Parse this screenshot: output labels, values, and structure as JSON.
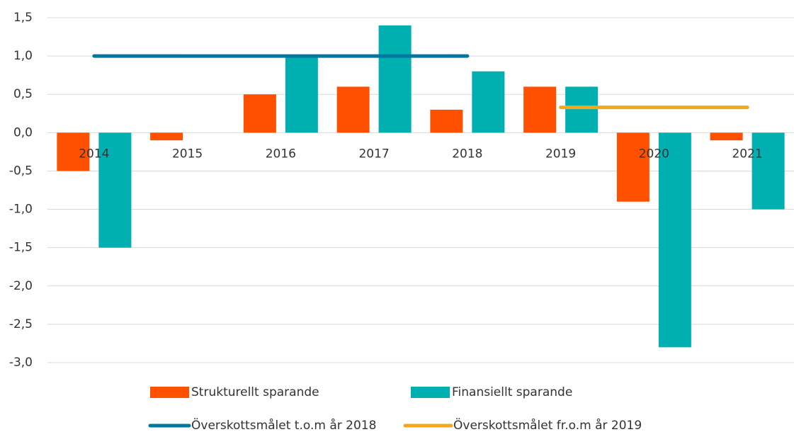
{
  "chart_data": {
    "type": "bar",
    "categories": [
      "2014",
      "2015",
      "2016",
      "2017",
      "2018",
      "2019",
      "2020",
      "2021"
    ],
    "series": [
      {
        "name": "Strukturellt sparande",
        "type": "bar",
        "color": "#ff5000",
        "values": [
          -0.5,
          -0.1,
          0.5,
          0.6,
          0.3,
          0.6,
          -0.9,
          -0.1
        ]
      },
      {
        "name": "Finansiellt sparande",
        "type": "bar",
        "color": "#00b0b0",
        "values": [
          -1.5,
          0,
          1.0,
          1.4,
          0.8,
          0.6,
          -2.8,
          -1.0
        ]
      },
      {
        "name": "Överskottsmålet t.o.m år 2018",
        "type": "line",
        "color": "#0077a0",
        "values": [
          1.0,
          1.0,
          1.0,
          1.0,
          1.0,
          null,
          null,
          null
        ]
      },
      {
        "name": "Överskottsmålet fr.o.m år 2019",
        "type": "line",
        "color": "#f2a81d",
        "values": [
          null,
          null,
          null,
          null,
          null,
          0.33,
          0.33,
          0.33
        ]
      }
    ],
    "ylim": [
      -3.0,
      1.5
    ],
    "yticks": [
      {
        "value": 1.5,
        "label": "1,5"
      },
      {
        "value": 1.0,
        "label": "1,0"
      },
      {
        "value": 0.5,
        "label": "0,5"
      },
      {
        "value": 0,
        "label": "0,0"
      },
      {
        "value": -0.5,
        "label": "-0,5"
      },
      {
        "value": -1.0,
        "label": "-1,0"
      },
      {
        "value": -1.5,
        "label": "-1,5"
      },
      {
        "value": -2.0,
        "label": "-2,0"
      },
      {
        "value": -2.5,
        "label": "-2,5"
      },
      {
        "value": -3.0,
        "label": "-3,0"
      }
    ],
    "grid": true
  }
}
